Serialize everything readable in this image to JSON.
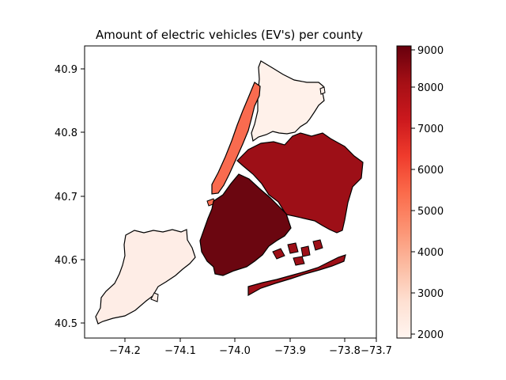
{
  "chart_data": {
    "type": "choropleth",
    "title": "Amount of electric vehicles (EV's) per county",
    "xlabel": "",
    "ylabel": "",
    "xlim": [
      -74.28,
      -73.68
    ],
    "ylim": [
      40.475,
      40.935
    ],
    "xticks": [
      -74.2,
      -74.1,
      -74.0,
      -73.9,
      -73.8,
      -73.7
    ],
    "xtick_labels": [
      "−74.2",
      "−74.1",
      "−74.0",
      "−73.9",
      "−73.8",
      "−73.7"
    ],
    "yticks": [
      40.5,
      40.6,
      40.7,
      40.8,
      40.9
    ],
    "ytick_labels": [
      "40.5",
      "40.6",
      "40.7",
      "40.8",
      "40.9"
    ],
    "colormap": "Reds",
    "colorbar": {
      "vmin": 1950,
      "vmax": 9050,
      "ticks": [
        2000,
        3000,
        4000,
        5000,
        6000,
        7000,
        8000,
        9000
      ],
      "tick_labels": [
        "2000",
        "3000",
        "4000",
        "5000",
        "6000",
        "7000",
        "8000",
        "9000"
      ]
    },
    "regions": [
      {
        "value": 2050,
        "color": "#fff1ea"
      },
      {
        "value": 2100,
        "color": "#feede6"
      },
      {
        "value": 5850,
        "color": "#f96b4f"
      },
      {
        "value": 8150,
        "color": "#9d0f17"
      },
      {
        "value": 9000,
        "color": "#6b0610"
      }
    ]
  }
}
